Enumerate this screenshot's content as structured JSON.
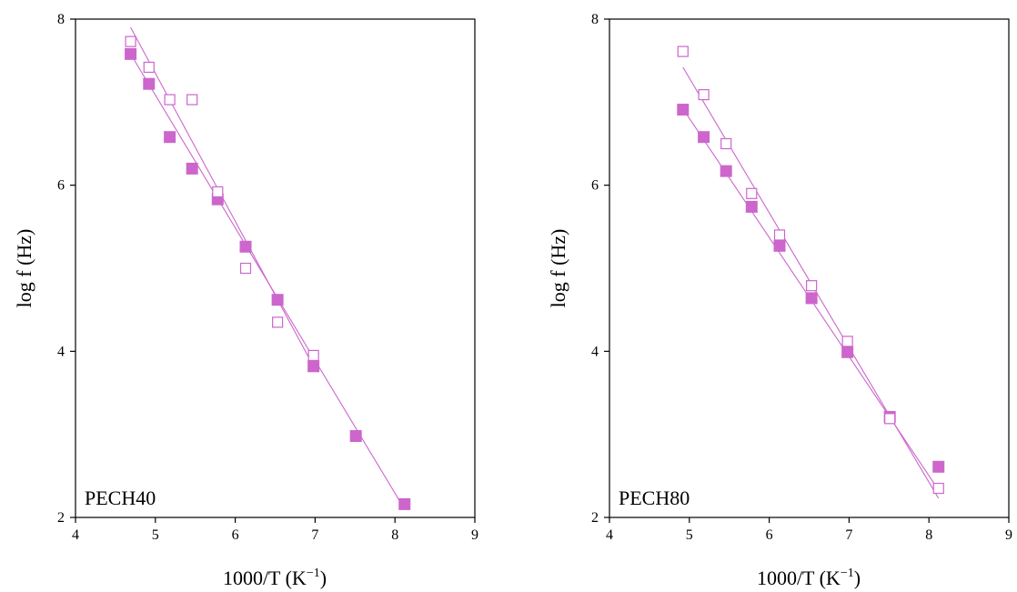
{
  "chart_data": [
    {
      "type": "scatter",
      "xlabel": "1000/T (K",
      "xlabel_sup": "−1",
      "xlabel_close": ")",
      "ylabel": "log f (Hz)",
      "annotation": "PECH40",
      "xlim": [
        4,
        9
      ],
      "ylim": [
        2,
        8
      ],
      "xticks": [
        "4",
        "5",
        "6",
        "7",
        "8",
        "9"
      ],
      "yticks": [
        "2",
        "4",
        "6",
        "8"
      ],
      "color": "#cc66cc",
      "series": [
        {
          "marker": "filled-square",
          "x": [
            4.69,
            4.92,
            5.18,
            5.46,
            5.78,
            6.13,
            6.53,
            6.98,
            7.51,
            8.12
          ],
          "y": [
            7.58,
            7.22,
            6.58,
            6.2,
            5.83,
            5.26,
            4.62,
            3.82,
            2.98,
            2.16
          ],
          "fit": [
            [
              4.69,
              7.58
            ],
            [
              8.12,
              2.1
            ]
          ]
        },
        {
          "marker": "open-square",
          "x": [
            4.69,
            4.92,
            5.18,
            5.46,
            5.78,
            6.13,
            6.53,
            6.98
          ],
          "y": [
            7.73,
            7.42,
            7.03,
            7.03,
            5.92,
            5.0,
            4.35,
            3.95
          ],
          "fit": [
            [
              4.69,
              7.9
            ],
            [
              6.98,
              3.82
            ]
          ]
        }
      ]
    },
    {
      "type": "scatter",
      "xlabel": "1000/T (K",
      "xlabel_sup": "−1",
      "xlabel_close": ")",
      "ylabel": "log f (Hz)",
      "annotation": "PECH80",
      "xlim": [
        4,
        9
      ],
      "ylim": [
        2,
        8
      ],
      "xticks": [
        "4",
        "5",
        "6",
        "7",
        "8",
        "9"
      ],
      "yticks": [
        "2",
        "4",
        "6",
        "8"
      ],
      "color": "#cc66cc",
      "series": [
        {
          "marker": "filled-square",
          "x": [
            4.92,
            5.18,
            5.46,
            5.78,
            6.13,
            6.53,
            6.98,
            7.51,
            8.12
          ],
          "y": [
            6.91,
            6.58,
            6.17,
            5.74,
            5.27,
            4.64,
            3.99,
            3.21,
            2.61
          ],
          "fit": [
            [
              4.92,
              6.92
            ],
            [
              8.12,
              2.33
            ]
          ]
        },
        {
          "marker": "open-square",
          "x": [
            4.92,
            5.18,
            5.46,
            5.78,
            6.13,
            6.53,
            6.98,
            7.51,
            8.12
          ],
          "y": [
            7.61,
            7.09,
            6.5,
            5.9,
            5.4,
            4.79,
            4.12,
            3.19,
            2.35
          ],
          "fit": [
            [
              4.92,
              7.42
            ],
            [
              8.12,
              2.23
            ]
          ]
        }
      ]
    }
  ]
}
